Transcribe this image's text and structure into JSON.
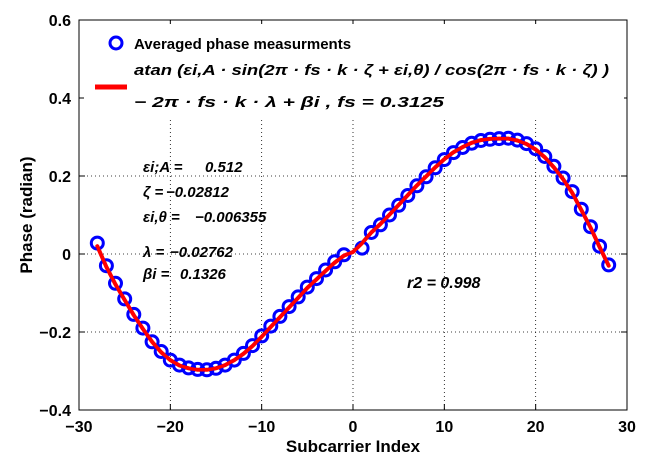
{
  "chart_data": {
    "type": "scatter",
    "title": "",
    "xlabel": "Subcarrier Index",
    "ylabel": "Phase (radian)",
    "xlim": [
      -30,
      30
    ],
    "ylim": [
      -0.4,
      0.6
    ],
    "grid": true,
    "xticks": [
      -30,
      -20,
      -10,
      0,
      10,
      20,
      30
    ],
    "yticks": [
      -0.4,
      -0.2,
      0,
      0.2,
      0.4,
      0.6
    ],
    "xtick_labels": [
      "−30",
      "−20",
      "−10",
      "0",
      "10",
      "20",
      "30"
    ],
    "ytick_labels": [
      "−0.4",
      "−0.2",
      "0",
      "0.2",
      "0.4",
      "0.6"
    ],
    "legend": {
      "placement": "top",
      "entries": [
        {
          "marker": "circle",
          "color": "#0000ff",
          "lines": [
            "Averaged phase measurments"
          ]
        },
        {
          "marker": "line",
          "color": "#ff0000",
          "lines": [
            "atan (εi,A · sin(2π · fs · k · ζ + εi,θ) / cos(2π · fs · k · ζ) )",
            "− 2π · fs · k · λ + βi ,    fs = 0.3125"
          ]
        }
      ]
    },
    "annotations": [
      {
        "label": "εi;A =",
        "value": "0.512"
      },
      {
        "label": "ζ =",
        "value": "−0.02812"
      },
      {
        "label": "εi,θ =",
        "value": "−0.006355"
      },
      {
        "label": "λ =",
        "value": "−0.02762"
      },
      {
        "label": "βi =",
        "value": "0.1326"
      }
    ],
    "r2_text": "r2 = 0.998",
    "fit_params": {
      "eps_A": 0.512,
      "zeta": -0.02812,
      "eps_theta": -0.006355,
      "lambda": -0.02762,
      "beta": 0.1326,
      "fs": 0.3125
    },
    "series": [
      {
        "name": "Averaged phase measurments",
        "kind": "scatter",
        "color": "#0000ff",
        "x": [
          -28,
          -27,
          -26,
          -25,
          -24,
          -23,
          -22,
          -21,
          -20,
          -19,
          -18,
          -17,
          -16,
          -15,
          -14,
          -13,
          -12,
          -11,
          -10,
          -9,
          -8,
          -7,
          -6,
          -5,
          -4,
          -3,
          -2,
          -1,
          1,
          2,
          3,
          4,
          5,
          6,
          7,
          8,
          9,
          10,
          11,
          12,
          13,
          14,
          15,
          16,
          17,
          18,
          19,
          20,
          21,
          22,
          23,
          24,
          25,
          26,
          27,
          28
        ],
        "y": [
          0.028,
          -0.03,
          -0.075,
          -0.115,
          -0.155,
          -0.19,
          -0.225,
          -0.25,
          -0.272,
          -0.285,
          -0.292,
          -0.296,
          -0.297,
          -0.293,
          -0.285,
          -0.272,
          -0.255,
          -0.235,
          -0.21,
          -0.185,
          -0.16,
          -0.135,
          -0.11,
          -0.085,
          -0.063,
          -0.041,
          -0.02,
          -0.002,
          0.015,
          0.055,
          0.075,
          0.1,
          0.125,
          0.15,
          0.175,
          0.198,
          0.221,
          0.242,
          0.26,
          0.273,
          0.284,
          0.291,
          0.294,
          0.296,
          0.297,
          0.292,
          0.283,
          0.27,
          0.25,
          0.225,
          0.195,
          0.16,
          0.115,
          0.07,
          0.02,
          -0.028
        ]
      },
      {
        "name": "atan fit",
        "kind": "line",
        "color": "#ff0000",
        "x": [
          -28,
          -27,
          -26,
          -25,
          -24,
          -23,
          -22,
          -21,
          -20,
          -19,
          -18,
          -17,
          -16,
          -15,
          -14,
          -13,
          -12,
          -11,
          -10,
          -9,
          -8,
          -7,
          -6,
          -5,
          -4,
          -3,
          -2,
          -1,
          0,
          1,
          2,
          3,
          4,
          5,
          6,
          7,
          8,
          9,
          10,
          11,
          12,
          13,
          14,
          15,
          16,
          17,
          18,
          19,
          20,
          21,
          22,
          23,
          24,
          25,
          26,
          27,
          28
        ],
        "y": [
          0.02,
          -0.033,
          -0.078,
          -0.118,
          -0.157,
          -0.192,
          -0.225,
          -0.252,
          -0.272,
          -0.286,
          -0.293,
          -0.297,
          -0.297,
          -0.293,
          -0.285,
          -0.272,
          -0.256,
          -0.236,
          -0.212,
          -0.187,
          -0.162,
          -0.137,
          -0.112,
          -0.087,
          -0.065,
          -0.043,
          -0.022,
          -0.004,
          0.005,
          0.028,
          0.055,
          0.077,
          0.101,
          0.126,
          0.151,
          0.176,
          0.199,
          0.222,
          0.243,
          0.261,
          0.274,
          0.285,
          0.292,
          0.295,
          0.296,
          0.296,
          0.291,
          0.282,
          0.268,
          0.248,
          0.222,
          0.192,
          0.157,
          0.113,
          0.068,
          0.018,
          -0.03
        ]
      }
    ]
  }
}
